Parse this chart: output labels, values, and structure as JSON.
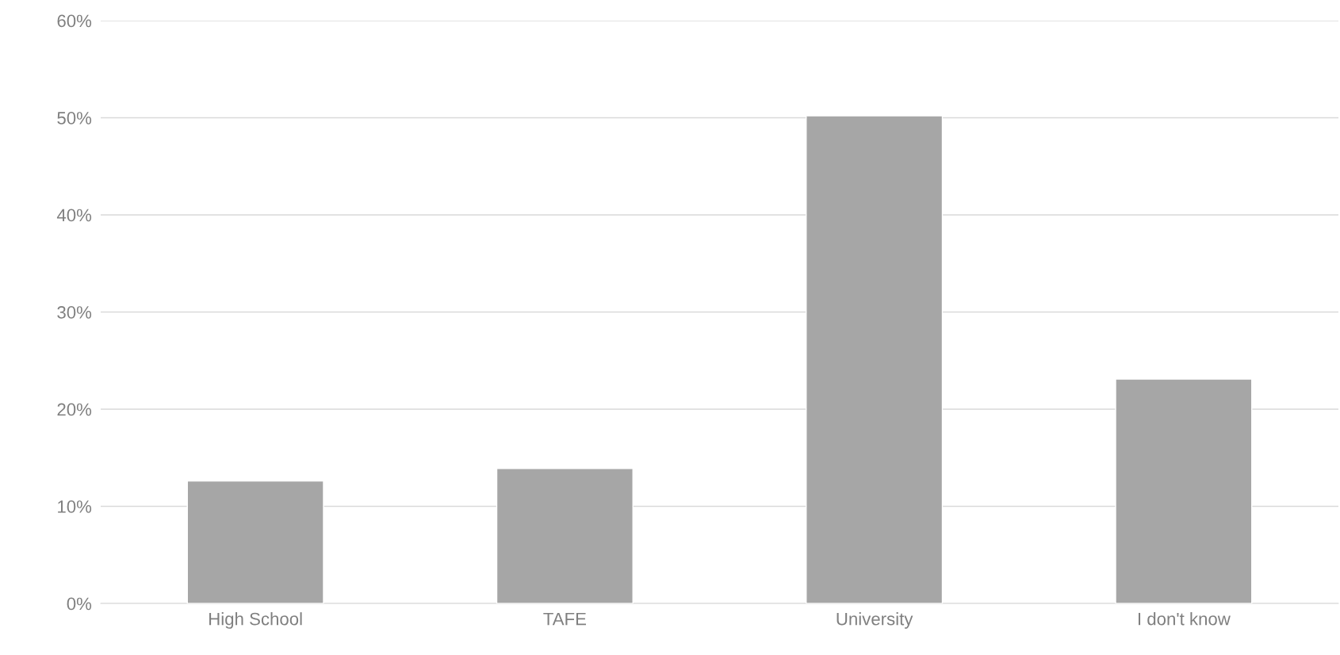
{
  "chart_data": {
    "type": "bar",
    "categories": [
      "High School",
      "TAFE",
      "University",
      "I don't know"
    ],
    "values": [
      12.6,
      13.9,
      50.2,
      23.1
    ],
    "color": "#a6a6a6",
    "ylim": [
      0,
      60
    ],
    "yticks": [
      {
        "value": 0,
        "label": "0%"
      },
      {
        "value": 10,
        "label": "10%"
      },
      {
        "value": 20,
        "label": "20%"
      },
      {
        "value": 30,
        "label": "30%"
      },
      {
        "value": 40,
        "label": "40%"
      },
      {
        "value": 50,
        "label": "50%"
      },
      {
        "value": 60,
        "label": "60%"
      }
    ],
    "grid": "y"
  }
}
